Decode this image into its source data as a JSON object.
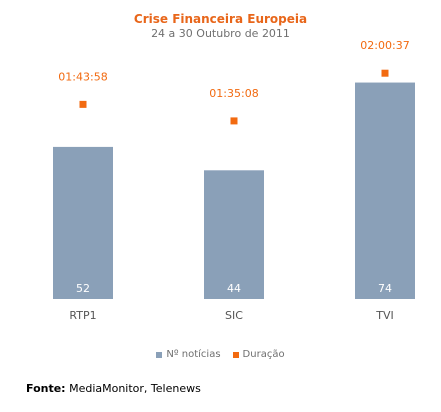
{
  "chart_data": {
    "type": "bar",
    "title": "Crise Financeira Europeia",
    "subtitle": "24 a 30 Outubro de 2011",
    "categories": [
      "RTP1",
      "SIC",
      "TVI"
    ],
    "series": [
      {
        "name": "Nº notícias",
        "kind": "bar",
        "color": "#8aa0b8",
        "values": [
          52,
          44,
          74
        ]
      },
      {
        "name": "Duração",
        "kind": "point",
        "color": "#f26a10",
        "values_seconds": [
          6238,
          5708,
          7237
        ],
        "labels": [
          "01:43:58",
          "01:35:08",
          "02:00:37"
        ]
      }
    ],
    "ylim_count": [
      0,
      80
    ],
    "ylim_duration_seconds": [
      0,
      7500
    ],
    "grid": false,
    "legend_position": "bottom"
  },
  "source": {
    "label": "Fonte:",
    "text": " MediaMonitor, Telenews"
  }
}
